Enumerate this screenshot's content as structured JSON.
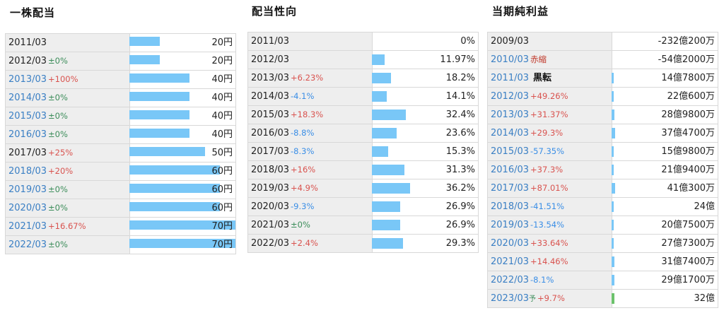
{
  "dividend": {
    "title": "一株配当",
    "rows": [
      {
        "year": "2011/03",
        "change": "",
        "change_type": "",
        "value": "20円",
        "level": 0.49,
        "link": false
      },
      {
        "year": "2012/03",
        "change": "±0%",
        "change_type": "flat",
        "value": "20円",
        "level": 0.49,
        "link": false
      },
      {
        "year": "2013/03",
        "change": "+100%",
        "change_type": "up",
        "value": "40円",
        "level": 0.98,
        "link": true
      },
      {
        "year": "2014/03",
        "change": "±0%",
        "change_type": "flat",
        "value": "40円",
        "level": 0.98,
        "link": true
      },
      {
        "year": "2015/03",
        "change": "±0%",
        "change_type": "flat",
        "value": "40円",
        "level": 0.98,
        "link": true
      },
      {
        "year": "2016/03",
        "change": "±0%",
        "change_type": "flat",
        "value": "40円",
        "level": 0.98,
        "link": true
      },
      {
        "year": "2017/03",
        "change": "+25%",
        "change_type": "up",
        "value": "50円",
        "level": 1.23,
        "link": false
      },
      {
        "year": "2018/03",
        "change": "+20%",
        "change_type": "up",
        "value": "60円",
        "level": 1.47,
        "link": true
      },
      {
        "year": "2019/03",
        "change": "±0%",
        "change_type": "flat",
        "value": "60円",
        "level": 1.47,
        "link": true
      },
      {
        "year": "2020/03",
        "change": "±0%",
        "change_type": "flat",
        "value": "60円",
        "level": 1.47,
        "link": true
      },
      {
        "year": "2021/03",
        "change": "+16.67%",
        "change_type": "up",
        "value": "70円",
        "level": 1.72,
        "link": true
      },
      {
        "year": "2022/03",
        "change": "±0%",
        "change_type": "flat",
        "value": "70円",
        "level": 1.72,
        "link": true
      }
    ]
  },
  "payout": {
    "title": "配当性向",
    "rows": [
      {
        "year": "2011/03",
        "change": "",
        "change_type": "",
        "value": "0%",
        "level": 0.0,
        "link": false
      },
      {
        "year": "2012/03",
        "change": "",
        "change_type": "",
        "value": "11.97%",
        "level": 0.33,
        "link": false
      },
      {
        "year": "2013/03",
        "change": "+6.23%",
        "change_type": "up",
        "value": "18.2%",
        "level": 0.5,
        "link": false
      },
      {
        "year": "2014/03",
        "change": "-4.1%",
        "change_type": "down",
        "value": "14.1%",
        "level": 0.39,
        "link": false
      },
      {
        "year": "2015/03",
        "change": "+18.3%",
        "change_type": "up",
        "value": "32.4%",
        "level": 0.89,
        "link": false
      },
      {
        "year": "2016/03",
        "change": "-8.8%",
        "change_type": "down",
        "value": "23.6%",
        "level": 0.65,
        "link": false
      },
      {
        "year": "2017/03",
        "change": "-8.3%",
        "change_type": "down",
        "value": "15.3%",
        "level": 0.42,
        "link": false
      },
      {
        "year": "2018/03",
        "change": "+16%",
        "change_type": "up",
        "value": "31.3%",
        "level": 0.86,
        "link": false
      },
      {
        "year": "2019/03",
        "change": "+4.9%",
        "change_type": "up",
        "value": "36.2%",
        "level": 1.0,
        "link": false
      },
      {
        "year": "2020/03",
        "change": "-9.3%",
        "change_type": "down",
        "value": "26.9%",
        "level": 0.74,
        "link": false
      },
      {
        "year": "2021/03",
        "change": "±0%",
        "change_type": "flat",
        "value": "26.9%",
        "level": 0.74,
        "link": false
      },
      {
        "year": "2022/03",
        "change": "+2.4%",
        "change_type": "up",
        "value": "29.3%",
        "level": 0.81,
        "link": false
      }
    ]
  },
  "profit": {
    "title": "当期純利益",
    "rows": [
      {
        "year": "2009/03",
        "change": "",
        "change_type": "",
        "tag": "",
        "tag_type": "",
        "value": "-232億200万",
        "level": 0.0,
        "link": false
      },
      {
        "year": "2010/03",
        "change": "",
        "change_type": "",
        "tag": "赤縮",
        "tag_type": "red",
        "value": "-54億2000万",
        "level": 0.0,
        "link": true
      },
      {
        "year": "2011/03",
        "change": "",
        "change_type": "",
        "tag": "黒転",
        "tag_type": "black",
        "value": "14億7800万",
        "level": 0.035,
        "link": true
      },
      {
        "year": "2012/03",
        "change": "+49.26%",
        "change_type": "up",
        "tag": "",
        "tag_type": "",
        "value": "22億600万",
        "level": 0.053,
        "link": true
      },
      {
        "year": "2013/03",
        "change": "+31.37%",
        "change_type": "up",
        "tag": "",
        "tag_type": "",
        "value": "28億9800万",
        "level": 0.07,
        "link": true
      },
      {
        "year": "2014/03",
        "change": "+29.3%",
        "change_type": "up",
        "tag": "",
        "tag_type": "",
        "value": "37億4700万",
        "level": 0.09,
        "link": true
      },
      {
        "year": "2015/03",
        "change": "-57.35%",
        "change_type": "down",
        "tag": "",
        "tag_type": "",
        "value": "15億9800万",
        "level": 0.038,
        "link": true
      },
      {
        "year": "2016/03",
        "change": "+37.3%",
        "change_type": "up",
        "tag": "",
        "tag_type": "",
        "value": "21億9400万",
        "level": 0.053,
        "link": true
      },
      {
        "year": "2017/03",
        "change": "+87.01%",
        "change_type": "up",
        "tag": "",
        "tag_type": "",
        "value": "41億300万",
        "level": 0.099,
        "link": true
      },
      {
        "year": "2018/03",
        "change": "-41.51%",
        "change_type": "down",
        "tag": "",
        "tag_type": "",
        "value": "24億",
        "level": 0.058,
        "link": true
      },
      {
        "year": "2019/03",
        "change": "-13.54%",
        "change_type": "down",
        "tag": "",
        "tag_type": "",
        "value": "20億7500万",
        "level": 0.05,
        "link": true
      },
      {
        "year": "2020/03",
        "change": "+33.64%",
        "change_type": "up",
        "tag": "",
        "tag_type": "",
        "value": "27億7300万",
        "level": 0.067,
        "link": true
      },
      {
        "year": "2021/03",
        "change": "+14.46%",
        "change_type": "up",
        "tag": "",
        "tag_type": "",
        "value": "31億7400万",
        "level": 0.076,
        "link": true
      },
      {
        "year": "2022/03",
        "change": "-8.1%",
        "change_type": "down",
        "tag": "",
        "tag_type": "",
        "value": "29億1700万",
        "level": 0.07,
        "link": true
      },
      {
        "year": "2023/03",
        "change": "+9.7%",
        "change_type": "up",
        "tag": "予",
        "tag_type": "forecast",
        "value": "32億",
        "level": 0.077,
        "link": true
      }
    ]
  },
  "colors": {
    "bar": "#79c7f7",
    "forecast_bar": "#6cc26c",
    "up": "#d9534f",
    "down": "#3a8ee6",
    "flat": "#3c8d5a",
    "link": "#3a7fc4"
  }
}
